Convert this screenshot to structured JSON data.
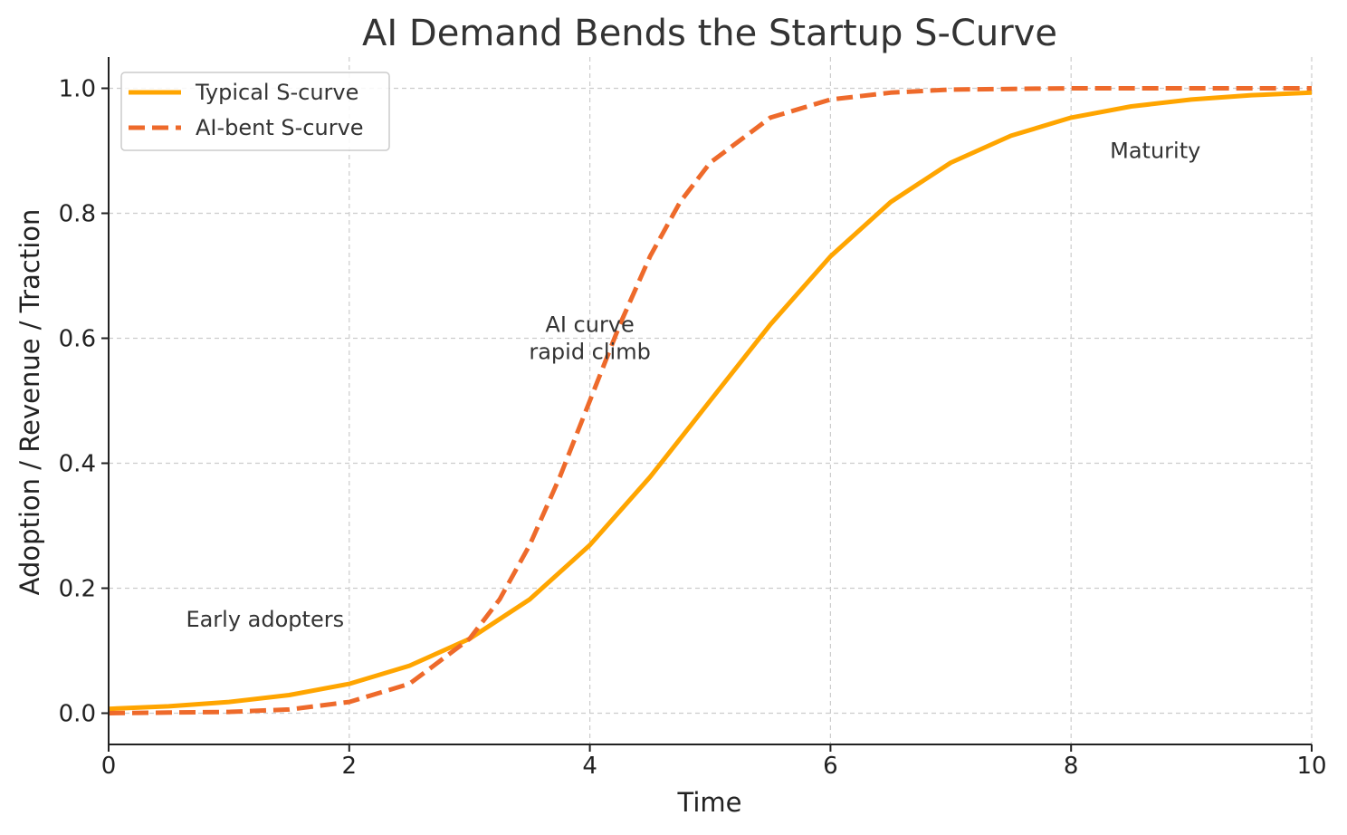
{
  "chart_data": {
    "type": "line",
    "title": "AI Demand Bends the Startup S-Curve",
    "xlabel": "Time",
    "ylabel": "Adoption / Revenue / Traction",
    "xlim": [
      0,
      10
    ],
    "ylim": [
      -0.05,
      1.05
    ],
    "xticks": [
      0,
      2,
      4,
      6,
      8,
      10
    ],
    "yticks": [
      0.0,
      0.2,
      0.4,
      0.6,
      0.8,
      1.0
    ],
    "xtick_labels": [
      "0",
      "2",
      "4",
      "6",
      "8",
      "10"
    ],
    "ytick_labels": [
      "0.0",
      "0.2",
      "0.4",
      "0.6",
      "0.8",
      "1.0"
    ],
    "grid": true,
    "legend_position": "top-left",
    "series": [
      {
        "name": "Typical S-curve",
        "color": "#FFA500",
        "style": "solid",
        "x": [
          0,
          0.5,
          1,
          1.5,
          2,
          2.5,
          3,
          3.5,
          4,
          4.5,
          5,
          5.5,
          6,
          6.5,
          7,
          7.5,
          8,
          8.5,
          9,
          9.5,
          10
        ],
        "y": [
          0.007,
          0.011,
          0.018,
          0.029,
          0.047,
          0.076,
          0.119,
          0.182,
          0.269,
          0.378,
          0.5,
          0.622,
          0.731,
          0.818,
          0.881,
          0.924,
          0.953,
          0.971,
          0.982,
          0.989,
          0.993
        ]
      },
      {
        "name": "AI-bent S-curve",
        "color": "#EE6A2B",
        "style": "dashed",
        "x": [
          0,
          0.5,
          1,
          1.5,
          2,
          2.5,
          3,
          3.25,
          3.5,
          3.75,
          4,
          4.25,
          4.5,
          4.75,
          5,
          5.5,
          6,
          6.5,
          7,
          8,
          9,
          10
        ],
        "y": [
          0.0,
          0.001,
          0.002,
          0.006,
          0.018,
          0.047,
          0.119,
          0.182,
          0.269,
          0.378,
          0.5,
          0.622,
          0.731,
          0.818,
          0.881,
          0.953,
          0.982,
          0.993,
          0.998,
          1.0,
          1.0,
          1.0
        ]
      }
    ],
    "annotations": [
      {
        "text": [
          "Early adopters"
        ],
        "x": 1.3,
        "y": 0.15,
        "align": "middle"
      },
      {
        "text": [
          "AI curve",
          "rapid climb"
        ],
        "x": 4.0,
        "y": 0.6,
        "align": "middle"
      },
      {
        "text": [
          "Maturity"
        ],
        "x": 8.7,
        "y": 0.9,
        "align": "middle"
      }
    ]
  }
}
